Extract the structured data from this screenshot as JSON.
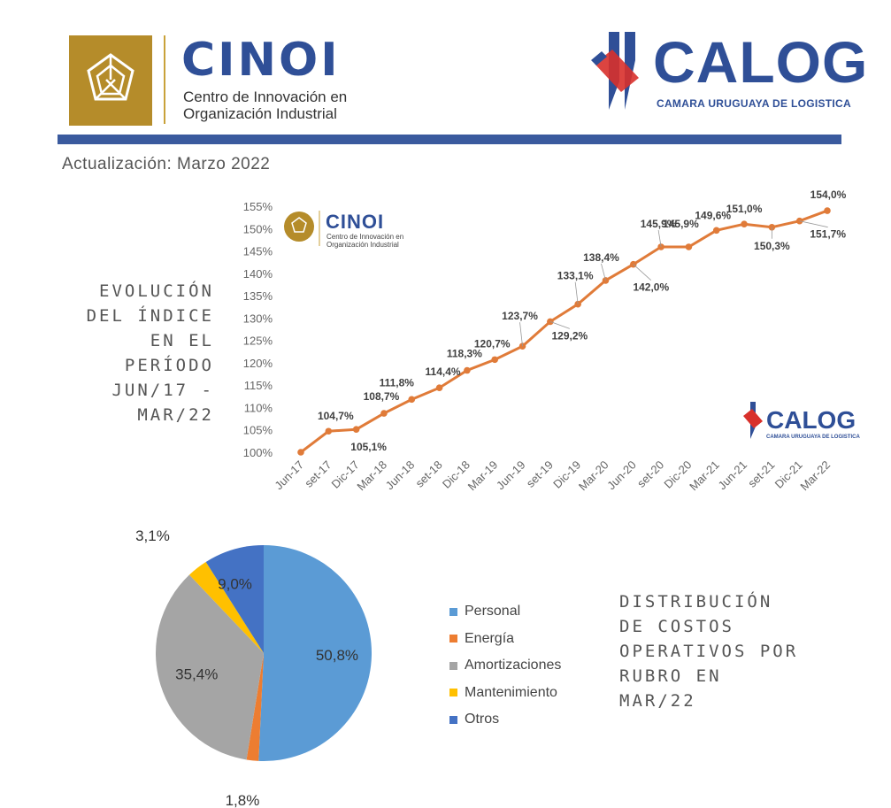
{
  "header": {
    "cinoi": {
      "name": "CINOI",
      "subtitle_line1": "Centro de Innovación en",
      "subtitle_line2": "Organización Industrial",
      "color": "#2f4f97",
      "gold": "#b58c2a"
    },
    "calog": {
      "name": "CALOG",
      "subtitle": "CAMARA URUGUAYA DE LOGISTICA",
      "color": "#2f4f97",
      "red": "#d8302b"
    },
    "update": "Actualización: Marzo 2022"
  },
  "line_title": [
    "EVOLUCIÓN",
    "DEL ÍNDICE",
    "EN EL",
    "PERÍODO",
    "JUN/17 -",
    "MAR/22"
  ],
  "pie_title": [
    "DISTRIBUCIÓN",
    "DE COSTOS",
    "OPERATIVOS POR",
    "RUBRO EN",
    "MAR/22"
  ],
  "watermark": {
    "cinoi_name": "CINOI",
    "cinoi_sub1": "Centro de Innovación en",
    "cinoi_sub2": "Organización Industrial",
    "calog_name": "CALOG",
    "calog_sub": "CAMARA URUGUAYA DE LOGISTICA"
  },
  "chart_data": [
    {
      "type": "line",
      "color": "#e07b39",
      "ylim": [
        100,
        155
      ],
      "y_ticks": [
        "100%",
        "105%",
        "110%",
        "115%",
        "120%",
        "125%",
        "130%",
        "135%",
        "140%",
        "145%",
        "150%",
        "155%"
      ],
      "categories": [
        "Jun-17",
        "set-17",
        "Dic-17",
        "Mar-18",
        "Jun-18",
        "set-18",
        "Dic-18",
        "Mar-19",
        "Jun-19",
        "set-19",
        "Dic-19",
        "Mar-20",
        "Jun-20",
        "set-20",
        "Dic-20",
        "Mar-21",
        "Jun-21",
        "set-21",
        "Dic-21",
        "Mar-22"
      ],
      "values": [
        100.0,
        104.7,
        105.1,
        108.7,
        111.8,
        114.4,
        118.3,
        120.7,
        123.7,
        129.2,
        133.1,
        138.4,
        142.0,
        145.9,
        145.9,
        149.6,
        151.0,
        150.3,
        151.7,
        154.0
      ],
      "data_labels": [
        null,
        "104,7%",
        "105,1%",
        "108,7%",
        "111,8%",
        "114,4%",
        "118,3%",
        "120,7%",
        "123,7%",
        "129,2%",
        "133,1%",
        "138,4%",
        "142,0%",
        "145,9%",
        "145,9%",
        "149,6%",
        "151,0%",
        "150,3%",
        "151,7%",
        "154,0%"
      ],
      "grid": false
    },
    {
      "type": "pie",
      "labels": [
        "Personal",
        "Energía",
        "Amortizaciones",
        "Mantenimiento",
        "Otros"
      ],
      "values": [
        50.8,
        1.8,
        35.4,
        3.1,
        9.0
      ],
      "value_labels": [
        "50,8%",
        "1,8%",
        "35,4%",
        "3,1%",
        "9,0%"
      ],
      "colors": [
        "#5b9bd5",
        "#ed7d31",
        "#a5a5a5",
        "#ffc000",
        "#4472c4"
      ],
      "legend": "right"
    }
  ]
}
